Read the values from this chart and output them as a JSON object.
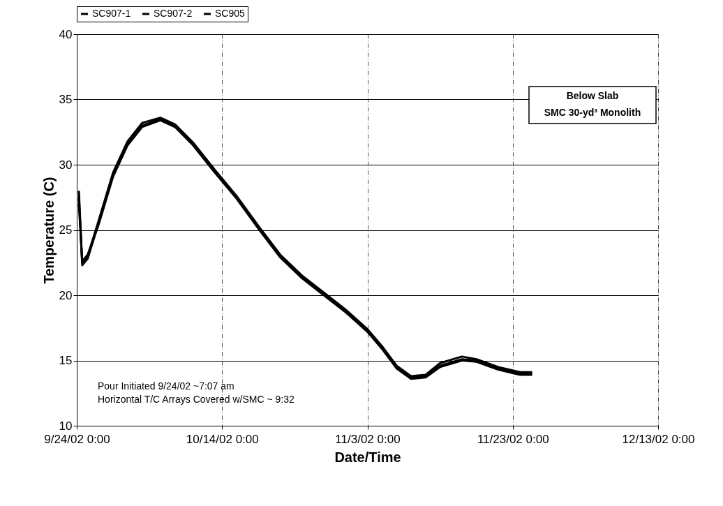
{
  "chart_data": {
    "type": "line",
    "xlabel": "Date/Time",
    "ylabel": "Temperature (C)",
    "x": [
      "2002-09-24T07:00",
      "2002-09-24T18:00",
      "2002-09-25T12:00",
      "2002-09-27T00:00",
      "2002-09-29T00:00",
      "2002-10-01T00:00",
      "2002-10-03T00:00",
      "2002-10-05T12:00",
      "2002-10-07T12:00",
      "2002-10-10T00:00",
      "2002-10-13T00:00",
      "2002-10-16T00:00",
      "2002-10-19T00:00",
      "2002-10-22T00:00",
      "2002-10-25T00:00",
      "2002-10-28T00:00",
      "2002-10-31T00:00",
      "2002-11-03T00:00",
      "2002-11-05T00:00",
      "2002-11-07T00:00",
      "2002-11-09T00:00",
      "2002-11-11T00:00",
      "2002-11-13T00:00",
      "2002-11-16T00:00",
      "2002-11-18T00:00",
      "2002-11-21T00:00",
      "2002-11-24T00:00",
      "2002-11-25T16:00"
    ],
    "series": [
      {
        "name": "SC907-1",
        "color": "#000000",
        "values": [
          28,
          22.3,
          22.8,
          25.5,
          29.2,
          31.6,
          33,
          33.5,
          33,
          31.6,
          29.5,
          27.5,
          25.2,
          23,
          21.4,
          20.1,
          18.8,
          17.3,
          16,
          14.5,
          13.7,
          13.8,
          14.6,
          15.1,
          15,
          14.4,
          14,
          14
        ]
      },
      {
        "name": "SC907-2",
        "color": "#000000",
        "values": [
          27.5,
          22.5,
          23,
          25.7,
          29.4,
          31.8,
          33.2,
          33.6,
          33.1,
          31.7,
          29.6,
          27.6,
          25.3,
          23.1,
          21.5,
          20.2,
          18.9,
          17.4,
          16.1,
          14.6,
          13.8,
          13.9,
          14.8,
          15.3,
          15.1,
          14.5,
          14.1,
          14.1
        ]
      },
      {
        "name": "SC905",
        "color": "#000000",
        "values": [
          27,
          22.6,
          23.1,
          25.4,
          29.1,
          31.5,
          32.9,
          33.4,
          32.9,
          31.5,
          29.4,
          27.4,
          25.1,
          22.9,
          21.3,
          20,
          18.7,
          17.2,
          15.9,
          14.4,
          13.6,
          13.7,
          14.5,
          15,
          14.9,
          14.3,
          13.9,
          13.9
        ]
      }
    ],
    "xlim": [
      "2002-09-24",
      "2002-12-13"
    ],
    "xticks": [
      {
        "value": "2002-09-24",
        "label": "9/24/02 0:00"
      },
      {
        "value": "2002-10-14",
        "label": "10/14/02 0:00"
      },
      {
        "value": "2002-11-03",
        "label": "11/3/02 0:00"
      },
      {
        "value": "2002-11-23",
        "label": "11/23/02 0:00"
      },
      {
        "value": "2002-12-13",
        "label": "12/13/02 0:00"
      }
    ],
    "ylim": [
      10,
      40
    ],
    "yticks": [
      10,
      15,
      20,
      25,
      30,
      35,
      40
    ],
    "grid": true,
    "legend": "top",
    "line_style": "solid",
    "marker": "none",
    "annotations": [
      "Below Slab\nSMC 30-yd³ Monolith",
      "Pour Initiated 9/24/02  ~7:07 am\nHorizontal T/C Arrays Covered w/SMC ~ 9:32"
    ]
  }
}
